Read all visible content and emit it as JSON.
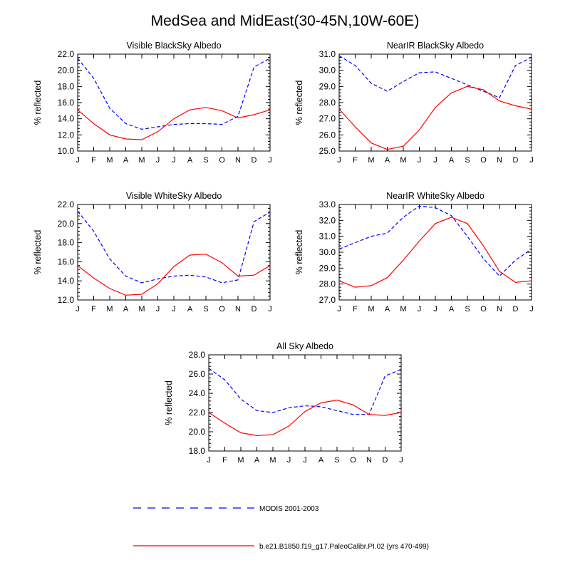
{
  "title": "MedSea and MidEast(30-45N,10W-60E)",
  "months": [
    "J",
    "F",
    "M",
    "A",
    "M",
    "J",
    "J",
    "A",
    "S",
    "O",
    "N",
    "D",
    "J"
  ],
  "legend": {
    "modis": "MODIS 2001-2003",
    "model": "b.e21.B1850.f19_g17.PaleoCalibr.PI.02 (yrs 470-499)"
  },
  "colors": {
    "modis": "#0000ff",
    "model": "#ff0000"
  },
  "chart_data": [
    {
      "type": "line",
      "title": "Visible BlackSky Albedo",
      "ylabel": "% reflected",
      "ylim": [
        10.0,
        22.0
      ],
      "yticks": [
        "10.0",
        "12.0",
        "14.0",
        "16.0",
        "18.0",
        "20.0",
        "22.0"
      ],
      "series": [
        {
          "name": "MODIS 2001-2003",
          "style": "dashed",
          "color": "#0000ff",
          "values": [
            21.5,
            19.0,
            15.3,
            13.4,
            12.7,
            13.0,
            13.3,
            13.4,
            13.4,
            13.3,
            14.3,
            20.4,
            21.5
          ]
        },
        {
          "name": "b.e21.B1850.f19_g17.PaleoCalibr.PI.02 (yrs 470-499)",
          "style": "solid",
          "color": "#ff0000",
          "values": [
            15.1,
            13.4,
            12.0,
            11.5,
            11.4,
            12.4,
            14.0,
            15.1,
            15.4,
            15.0,
            14.1,
            14.5,
            15.1
          ]
        }
      ]
    },
    {
      "type": "line",
      "title": "NearIR BlackSky Albedo",
      "ylabel": "% reflected",
      "ylim": [
        25.0,
        31.0
      ],
      "yticks": [
        "25.0",
        "26.0",
        "27.0",
        "28.0",
        "29.0",
        "30.0",
        "31.0"
      ],
      "series": [
        {
          "name": "MODIS 2001-2003",
          "style": "dashed",
          "color": "#0000ff",
          "values": [
            30.9,
            30.3,
            29.2,
            28.7,
            29.3,
            29.85,
            29.9,
            29.5,
            29.1,
            28.7,
            28.3,
            30.3,
            30.8
          ]
        },
        {
          "name": "b.e21.B1850.f19_g17.PaleoCalibr.PI.02 (yrs 470-499)",
          "style": "solid",
          "color": "#ff0000",
          "values": [
            27.6,
            26.5,
            25.5,
            25.1,
            25.3,
            26.3,
            27.7,
            28.6,
            29.0,
            28.8,
            28.1,
            27.8,
            27.6
          ]
        }
      ]
    },
    {
      "type": "line",
      "title": "Visible WhiteSky Albedo",
      "ylabel": "% reflected",
      "ylim": [
        12.0,
        22.0
      ],
      "yticks": [
        "12.0",
        "14.0",
        "16.0",
        "18.0",
        "20.0",
        "22.0"
      ],
      "series": [
        {
          "name": "MODIS 2001-2003",
          "style": "dashed",
          "color": "#0000ff",
          "values": [
            21.3,
            19.2,
            16.3,
            14.5,
            13.8,
            14.2,
            14.5,
            14.6,
            14.4,
            13.8,
            14.1,
            20.2,
            21.2
          ]
        },
        {
          "name": "b.e21.B1850.f19_g17.PaleoCalibr.PI.02 (yrs 470-499)",
          "style": "solid",
          "color": "#ff0000",
          "values": [
            15.6,
            14.3,
            13.2,
            12.5,
            12.6,
            13.7,
            15.5,
            16.7,
            16.8,
            15.9,
            14.5,
            14.6,
            15.6
          ]
        }
      ]
    },
    {
      "type": "line",
      "title": "NearIR WhiteSky Albedo",
      "ylabel": "% reflected",
      "ylim": [
        27.0,
        33.0
      ],
      "yticks": [
        "27.0",
        "28.0",
        "29.0",
        "30.0",
        "31.0",
        "32.0",
        "33.0"
      ],
      "series": [
        {
          "name": "MODIS 2001-2003",
          "style": "dashed",
          "color": "#0000ff",
          "values": [
            30.2,
            30.6,
            31.0,
            31.2,
            32.2,
            32.9,
            32.8,
            32.3,
            31.0,
            29.6,
            28.5,
            29.5,
            30.2
          ]
        },
        {
          "name": "b.e21.B1850.f19_g17.PaleoCalibr.PI.02 (yrs 470-499)",
          "style": "solid",
          "color": "#ff0000",
          "values": [
            28.2,
            27.8,
            27.9,
            28.4,
            29.5,
            30.7,
            31.8,
            32.2,
            31.8,
            30.4,
            28.8,
            28.1,
            28.2
          ]
        }
      ]
    },
    {
      "type": "line",
      "title": "All Sky Albedo",
      "ylabel": "% reflected",
      "ylim": [
        18.0,
        28.0
      ],
      "yticks": [
        "18.0",
        "20.0",
        "22.0",
        "24.0",
        "26.0",
        "28.0"
      ],
      "series": [
        {
          "name": "MODIS 2001-2003",
          "style": "dashed",
          "color": "#0000ff",
          "values": [
            26.6,
            25.4,
            23.4,
            22.2,
            22.0,
            22.5,
            22.7,
            22.6,
            22.2,
            21.8,
            21.8,
            25.8,
            26.5
          ]
        },
        {
          "name": "b.e21.B1850.f19_g17.PaleoCalibr.PI.02 (yrs 470-499)",
          "style": "solid",
          "color": "#ff0000",
          "values": [
            22.0,
            20.9,
            19.9,
            19.6,
            19.7,
            20.6,
            22.1,
            23.0,
            23.3,
            22.8,
            21.8,
            21.7,
            22.0
          ]
        }
      ]
    }
  ]
}
